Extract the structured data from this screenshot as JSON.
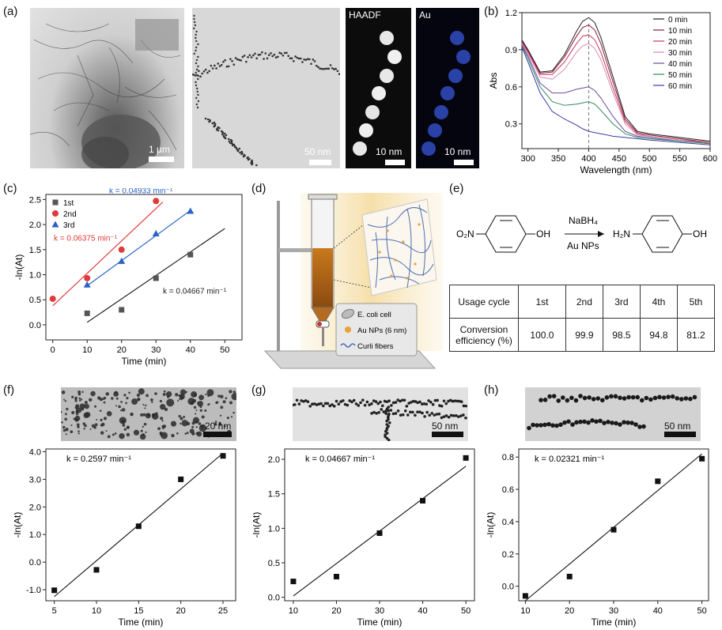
{
  "panel_labels": {
    "a": "(a)",
    "b": "(b)",
    "c": "(c)",
    "d": "(d)",
    "e": "(e)",
    "f": "(f)",
    "g": "(g)",
    "h": "(h)"
  },
  "panel_a": {
    "scale_1": "1 μm",
    "scale_2": "50 nm",
    "scale_3": "10 nm",
    "scale_4": "10 nm",
    "label_haadf": "HAADF",
    "label_au": "Au"
  },
  "scheme_d": {
    "legend_cell": "E. coli cell",
    "legend_np": "Au NPs (6 nm)",
    "legend_fiber": "Curli fibers",
    "colors": {
      "liquid": "#c9791c",
      "np": "#e8a23a",
      "fiber": "#4e6fb3"
    }
  },
  "reaction_e": {
    "reactant_group": "O₂N",
    "reactant_oh": "OH",
    "reagent_top": "NaBH₄",
    "reagent_bottom": "Au NPs",
    "product_group": "H₂N",
    "product_oh": "OH"
  },
  "table_e": {
    "header": [
      "Usage cycle",
      "1st",
      "2nd",
      "3rd",
      "4th",
      "5th"
    ],
    "row": [
      "Conversion efficiency (%)",
      "100.0",
      "99.9",
      "98.5",
      "94.8",
      "81.2"
    ]
  },
  "chart_data": [
    {
      "id": "b",
      "type": "line",
      "xlabel": "Wavelength (nm)",
      "ylabel": "Abs",
      "xlim": [
        290,
        600
      ],
      "ylim": [
        0.1,
        1.2
      ],
      "xticks": [
        300,
        350,
        400,
        450,
        500,
        550,
        600
      ],
      "yticks": [
        0.3,
        0.6,
        0.9,
        1.2
      ],
      "marker_line_x": 400,
      "x": [
        290,
        300,
        320,
        340,
        360,
        380,
        390,
        400,
        410,
        420,
        440,
        460,
        480,
        500,
        550,
        600
      ],
      "series": [
        {
          "name": "0 min",
          "color": "#222222",
          "values": [
            0.98,
            0.9,
            0.72,
            0.73,
            0.86,
            1.05,
            1.13,
            1.16,
            1.12,
            1.0,
            0.68,
            0.36,
            0.24,
            0.22,
            0.19,
            0.16
          ]
        },
        {
          "name": "10 min",
          "color": "#8a1a3a",
          "values": [
            0.97,
            0.89,
            0.71,
            0.72,
            0.84,
            1.01,
            1.08,
            1.1,
            1.06,
            0.95,
            0.64,
            0.34,
            0.23,
            0.21,
            0.18,
            0.15
          ]
        },
        {
          "name": "20 min",
          "color": "#c4375f",
          "values": [
            0.96,
            0.88,
            0.7,
            0.7,
            0.8,
            0.95,
            1.01,
            1.02,
            0.98,
            0.88,
            0.59,
            0.32,
            0.22,
            0.2,
            0.17,
            0.15
          ]
        },
        {
          "name": "30 min",
          "color": "#d88ab5",
          "values": [
            0.95,
            0.87,
            0.68,
            0.66,
            0.74,
            0.88,
            0.93,
            0.95,
            0.91,
            0.82,
            0.55,
            0.3,
            0.21,
            0.2,
            0.17,
            0.14
          ]
        },
        {
          "name": "40 min",
          "color": "#6a4aa0",
          "values": [
            0.94,
            0.85,
            0.63,
            0.55,
            0.55,
            0.58,
            0.59,
            0.6,
            0.57,
            0.51,
            0.36,
            0.24,
            0.2,
            0.19,
            0.16,
            0.14
          ]
        },
        {
          "name": "50 min",
          "color": "#2e8b57",
          "values": [
            0.93,
            0.83,
            0.6,
            0.48,
            0.45,
            0.46,
            0.47,
            0.48,
            0.46,
            0.41,
            0.3,
            0.22,
            0.19,
            0.18,
            0.16,
            0.14
          ]
        },
        {
          "name": "60 min",
          "color": "#3a3aa8",
          "values": [
            0.92,
            0.8,
            0.55,
            0.4,
            0.34,
            0.29,
            0.26,
            0.24,
            0.23,
            0.22,
            0.2,
            0.19,
            0.18,
            0.17,
            0.15,
            0.13
          ]
        }
      ]
    },
    {
      "id": "c",
      "type": "scatter",
      "xlabel": "Time (min)",
      "ylabel": "-ln(At)",
      "xlim": [
        -2,
        55
      ],
      "ylim": [
        -0.3,
        2.6
      ],
      "xticks": [
        0,
        10,
        20,
        30,
        40,
        50
      ],
      "yticks": [
        0.0,
        0.5,
        1.0,
        1.5,
        2.0,
        2.5
      ],
      "series": [
        {
          "name": "1st",
          "color": "#555555",
          "marker": "square",
          "x": [
            10,
            20,
            30,
            40
          ],
          "values": [
            0.23,
            0.3,
            0.93,
            1.4
          ],
          "fit": [
            [
              10,
              0.05
            ],
            [
              50,
              1.92
            ]
          ],
          "fit_color": "#222222",
          "label": "k = 0.04667 min⁻¹"
        },
        {
          "name": "2nd",
          "color": "#e03a3a",
          "marker": "circle",
          "x": [
            0,
            10,
            20,
            30
          ],
          "values": [
            0.52,
            0.93,
            1.5,
            2.47
          ],
          "fit": [
            [
              0,
              0.38
            ],
            [
              32,
              2.45
            ]
          ],
          "fit_color": "#e03a3a",
          "label": "k = 0.06375 min⁻¹"
        },
        {
          "name": "3rd",
          "color": "#2a62c8",
          "marker": "triangle",
          "x": [
            10,
            20,
            30,
            40
          ],
          "values": [
            0.8,
            1.27,
            1.82,
            2.27
          ],
          "fit": [
            [
              10,
              0.78
            ],
            [
              40,
              2.28
            ]
          ],
          "fit_color": "#2a62c8",
          "label": "k = 0.04933 min⁻¹"
        }
      ]
    },
    {
      "id": "f",
      "type": "scatter",
      "xlabel": "Time (min)",
      "ylabel": "-ln(At)",
      "xlim": [
        4,
        26.5
      ],
      "ylim": [
        -1.4,
        4.1
      ],
      "xticks": [
        5,
        10,
        15,
        20,
        25
      ],
      "yticks": [
        -1.0,
        0.0,
        1.0,
        2.0,
        3.0,
        4.0
      ],
      "x": [
        5,
        10,
        15,
        20,
        25
      ],
      "values": [
        -1.02,
        -0.28,
        1.3,
        3.0,
        3.85
      ],
      "fit": [
        [
          5,
          -1.25
        ],
        [
          25,
          3.95
        ]
      ],
      "label": "k = 0.2597 min⁻¹"
    },
    {
      "id": "g",
      "type": "scatter",
      "xlabel": "Time (min)",
      "ylabel": "-ln(At)",
      "xlim": [
        8,
        52
      ],
      "ylim": [
        -0.05,
        2.15
      ],
      "xticks": [
        10,
        20,
        30,
        40,
        50
      ],
      "yticks": [
        0.0,
        0.5,
        1.0,
        1.5,
        2.0
      ],
      "x": [
        10,
        20,
        30,
        40,
        50
      ],
      "values": [
        0.23,
        0.3,
        0.93,
        1.4,
        2.02
      ],
      "fit": [
        [
          10,
          0.02
        ],
        [
          50,
          1.9
        ]
      ],
      "label": "k = 0.04667 min⁻¹"
    },
    {
      "id": "h",
      "type": "scatter",
      "xlabel": "Time (min)",
      "ylabel": "-ln(At)",
      "xlim": [
        8.5,
        51.5
      ],
      "ylim": [
        -0.09,
        0.85
      ],
      "xticks": [
        10,
        20,
        30,
        40,
        50
      ],
      "yticks": [
        0.0,
        0.2,
        0.4,
        0.6,
        0.8
      ],
      "x": [
        10,
        20,
        30,
        40,
        50
      ],
      "values": [
        -0.06,
        0.06,
        0.35,
        0.65,
        0.79
      ],
      "fit": [
        [
          10,
          -0.09
        ],
        [
          50,
          0.82
        ]
      ],
      "label": "k = 0.02321 min⁻¹"
    }
  ],
  "tem_f": {
    "scale": "20 nm"
  },
  "tem_g": {
    "scale": "50 nm"
  },
  "tem_h": {
    "scale": "50 nm"
  }
}
